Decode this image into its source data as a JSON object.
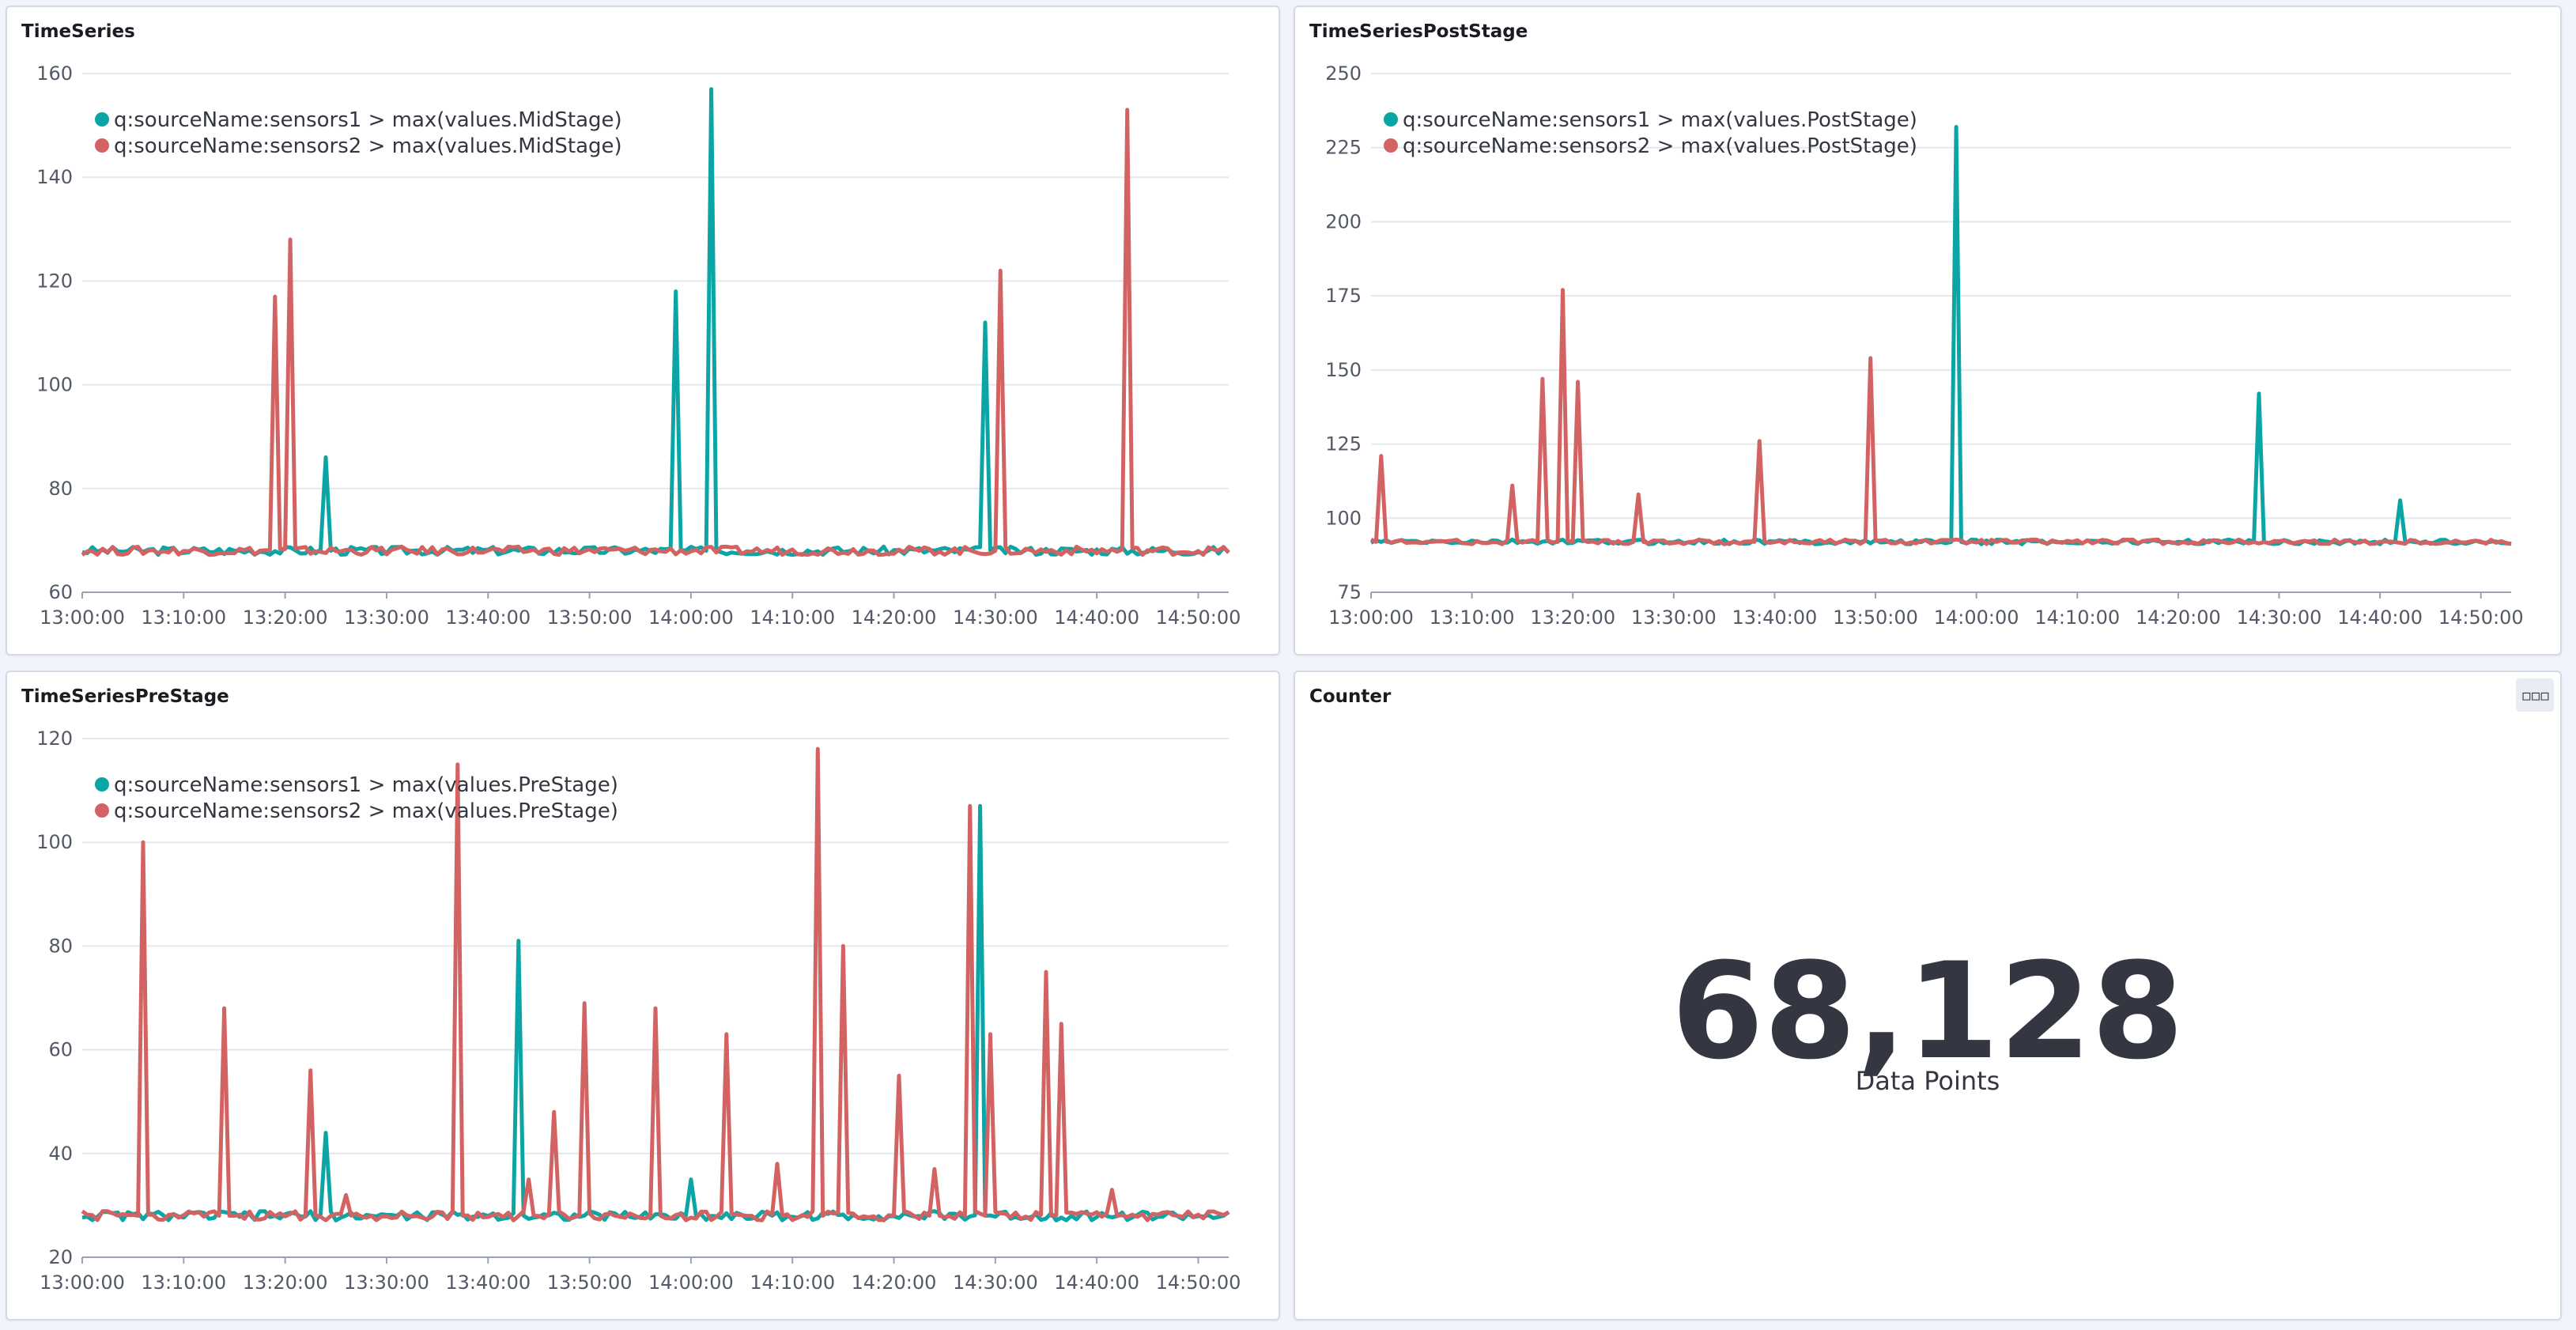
{
  "panels": [
    {
      "title": "TimeSeries",
      "chart_data": {
        "type": "line",
        "ylim": [
          60,
          160
        ],
        "yticks": [
          60,
          80,
          100,
          120,
          140,
          160
        ],
        "xticks": [
          "13:00:00",
          "13:10:00",
          "13:20:00",
          "13:30:00",
          "13:40:00",
          "13:50:00",
          "14:00:00",
          "14:10:00",
          "14:20:00",
          "14:30:00",
          "14:40:00",
          "14:50:00"
        ],
        "xrange_min": [
          0,
          113
        ],
        "baseline": 68,
        "legend_position": "top-left",
        "series": [
          {
            "name": "q:sourceName:sensors1 > max(values.MidStage)",
            "color": "#0ca5a5",
            "peaks": [
              [
                24,
                86
              ],
              [
                58.5,
                118
              ],
              [
                62,
                157
              ],
              [
                89,
                112
              ]
            ]
          },
          {
            "name": "q:sourceName:sensors2 > max(values.MidStage)",
            "color": "#d36362",
            "peaks": [
              [
                19,
                117
              ],
              [
                20.5,
                128
              ],
              [
                90.5,
                122
              ],
              [
                103,
                153
              ]
            ]
          }
        ]
      }
    },
    {
      "title": "TimeSeriesPostStage",
      "chart_data": {
        "type": "line",
        "ylim": [
          75,
          250
        ],
        "yticks": [
          75,
          100,
          125,
          150,
          175,
          200,
          225,
          250
        ],
        "xticks": [
          "13:00:00",
          "13:10:00",
          "13:20:00",
          "13:30:00",
          "13:40:00",
          "13:50:00",
          "14:00:00",
          "14:10:00",
          "14:20:00",
          "14:30:00",
          "14:40:00",
          "14:50:00"
        ],
        "xrange_min": [
          0,
          113
        ],
        "baseline": 92,
        "legend_position": "top-left",
        "series": [
          {
            "name": "q:sourceName:sensors1 > max(values.PostStage)",
            "color": "#0ca5a5",
            "peaks": [
              [
                58,
                232
              ],
              [
                88,
                142
              ],
              [
                102,
                106
              ]
            ]
          },
          {
            "name": "q:sourceName:sensors2 > max(values.PostStage)",
            "color": "#d36362",
            "peaks": [
              [
                1,
                121
              ],
              [
                14,
                111
              ],
              [
                17,
                147
              ],
              [
                19,
                177
              ],
              [
                20.5,
                146
              ],
              [
                26.5,
                108
              ],
              [
                38.5,
                126
              ],
              [
                49.5,
                154
              ]
            ]
          }
        ]
      }
    },
    {
      "title": "TimeSeriesPreStage",
      "chart_data": {
        "type": "line",
        "ylim": [
          20,
          120
        ],
        "yticks": [
          20,
          40,
          60,
          80,
          100,
          120
        ],
        "xticks": [
          "13:00:00",
          "13:10:00",
          "13:20:00",
          "13:30:00",
          "13:40:00",
          "13:50:00",
          "14:00:00",
          "14:10:00",
          "14:20:00",
          "14:30:00",
          "14:40:00",
          "14:50:00"
        ],
        "xrange_min": [
          0,
          113
        ],
        "baseline": 28,
        "legend_position": "top-left",
        "series": [
          {
            "name": "q:sourceName:sensors1 > max(values.PreStage)",
            "color": "#0ca5a5",
            "peaks": [
              [
                24,
                44
              ],
              [
                43,
                81
              ],
              [
                60,
                35
              ],
              [
                88.5,
                107
              ]
            ]
          },
          {
            "name": "q:sourceName:sensors2 > max(values.PreStage)",
            "color": "#d36362",
            "peaks": [
              [
                6,
                100
              ],
              [
                14,
                68
              ],
              [
                22.5,
                56
              ],
              [
                26,
                32
              ],
              [
                37,
                115
              ],
              [
                44,
                35
              ],
              [
                46.5,
                48
              ],
              [
                49.5,
                69
              ],
              [
                56.5,
                68
              ],
              [
                63.5,
                63
              ],
              [
                68.5,
                38
              ],
              [
                72.5,
                118
              ],
              [
                75,
                80
              ],
              [
                80.5,
                55
              ],
              [
                84,
                37
              ],
              [
                87.5,
                107
              ],
              [
                89.5,
                63
              ],
              [
                95,
                75
              ],
              [
                96.5,
                65
              ],
              [
                101.5,
                33
              ]
            ]
          }
        ]
      }
    },
    {
      "title": "Counter",
      "metric": {
        "value": "68,128",
        "label": "Data Points"
      },
      "options_icon": "more-dots-icon"
    }
  ]
}
